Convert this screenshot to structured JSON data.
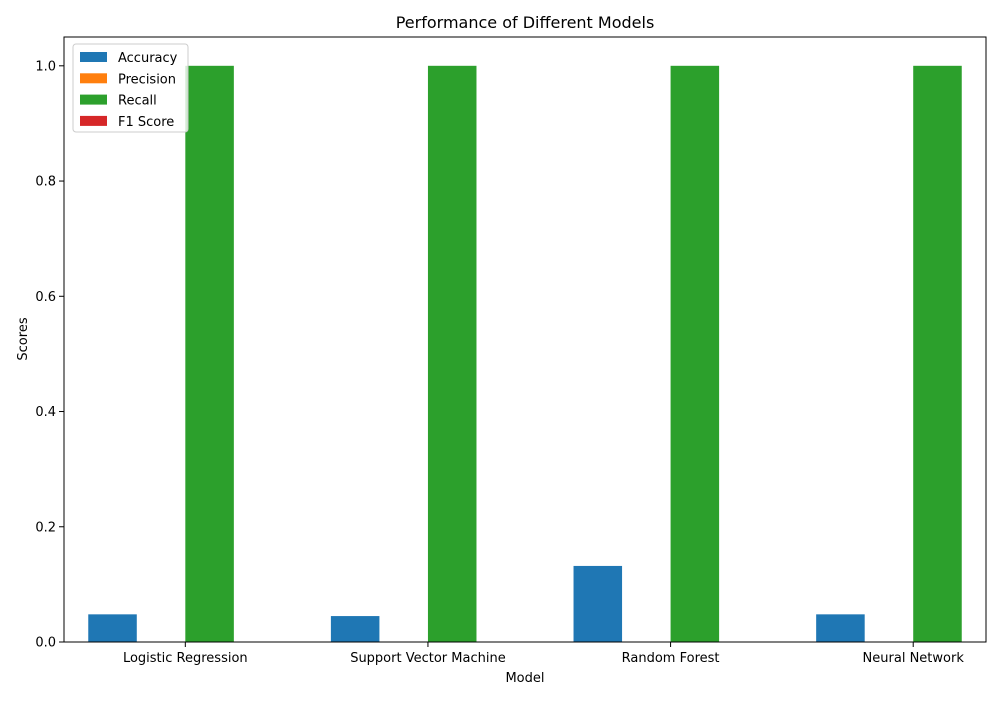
{
  "chart_data": {
    "type": "bar",
    "title": "Performance of Different Models",
    "xlabel": "Model",
    "ylabel": "Scores",
    "categories": [
      "Logistic Regression",
      "Support Vector Machine",
      "Random Forest",
      "Neural Network"
    ],
    "series": [
      {
        "name": "Accuracy",
        "color": "#1f77b4",
        "values": [
          0.048,
          0.045,
          0.132,
          0.048
        ]
      },
      {
        "name": "Precision",
        "color": "#ff7f0e",
        "values": [
          0.0,
          0.0,
          0.0,
          0.0
        ]
      },
      {
        "name": "Recall",
        "color": "#2ca02c",
        "values": [
          1.0,
          1.0,
          1.0,
          1.0
        ]
      },
      {
        "name": "F1 Score",
        "color": "#d62728",
        "values": [
          0.0,
          0.0,
          0.0,
          0.0
        ]
      }
    ],
    "ylim": [
      0,
      1.05
    ],
    "yticks": [
      "0.0",
      "0.2",
      "0.4",
      "0.6",
      "0.8",
      "1.0"
    ],
    "grid": false,
    "legend_position": "top-left"
  }
}
